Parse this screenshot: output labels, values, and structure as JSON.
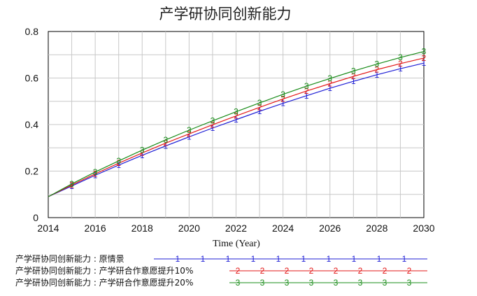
{
  "chart_data": {
    "type": "line",
    "title": "产学研协同创新能力",
    "xlabel": "Time (Year)",
    "ylabel": "",
    "xlim": [
      2014,
      2030
    ],
    "ylim": [
      0,
      0.8
    ],
    "x_ticks": [
      "2014",
      "2016",
      "2018",
      "2020",
      "2022",
      "2024",
      "2026",
      "2028",
      "2030"
    ],
    "y_ticks": [
      "0",
      "0.2",
      "0.4",
      "0.6",
      "0.8"
    ],
    "grid": true,
    "legend_position": "bottom-left",
    "x": [
      2014,
      2015,
      2016,
      2017,
      2018,
      2019,
      2020,
      2021,
      2022,
      2023,
      2024,
      2025,
      2026,
      2027,
      2028,
      2029,
      2030
    ],
    "series": [
      {
        "name": "产学研协同创新能力 : 原情景",
        "marker": "1",
        "color": "#1f1fd6",
        "values": [
          0.09,
          0.136,
          0.182,
          0.226,
          0.268,
          0.308,
          0.347,
          0.385,
          0.421,
          0.457,
          0.491,
          0.524,
          0.556,
          0.586,
          0.614,
          0.64,
          0.664
        ]
      },
      {
        "name": "产学研协同创新能力 : 产学研合作意愿提升10%",
        "marker": "2",
        "color": "#e31a1a",
        "values": [
          0.09,
          0.14,
          0.188,
          0.234,
          0.278,
          0.32,
          0.36,
          0.399,
          0.437,
          0.474,
          0.51,
          0.544,
          0.576,
          0.607,
          0.636,
          0.662,
          0.686
        ]
      },
      {
        "name": "产学研协同创新能力 : 产学研合作意愿提升20%",
        "marker": "3",
        "color": "#1a8c1a",
        "values": [
          0.09,
          0.145,
          0.196,
          0.244,
          0.29,
          0.334,
          0.376,
          0.416,
          0.455,
          0.493,
          0.53,
          0.565,
          0.598,
          0.63,
          0.66,
          0.688,
          0.714
        ]
      }
    ]
  }
}
